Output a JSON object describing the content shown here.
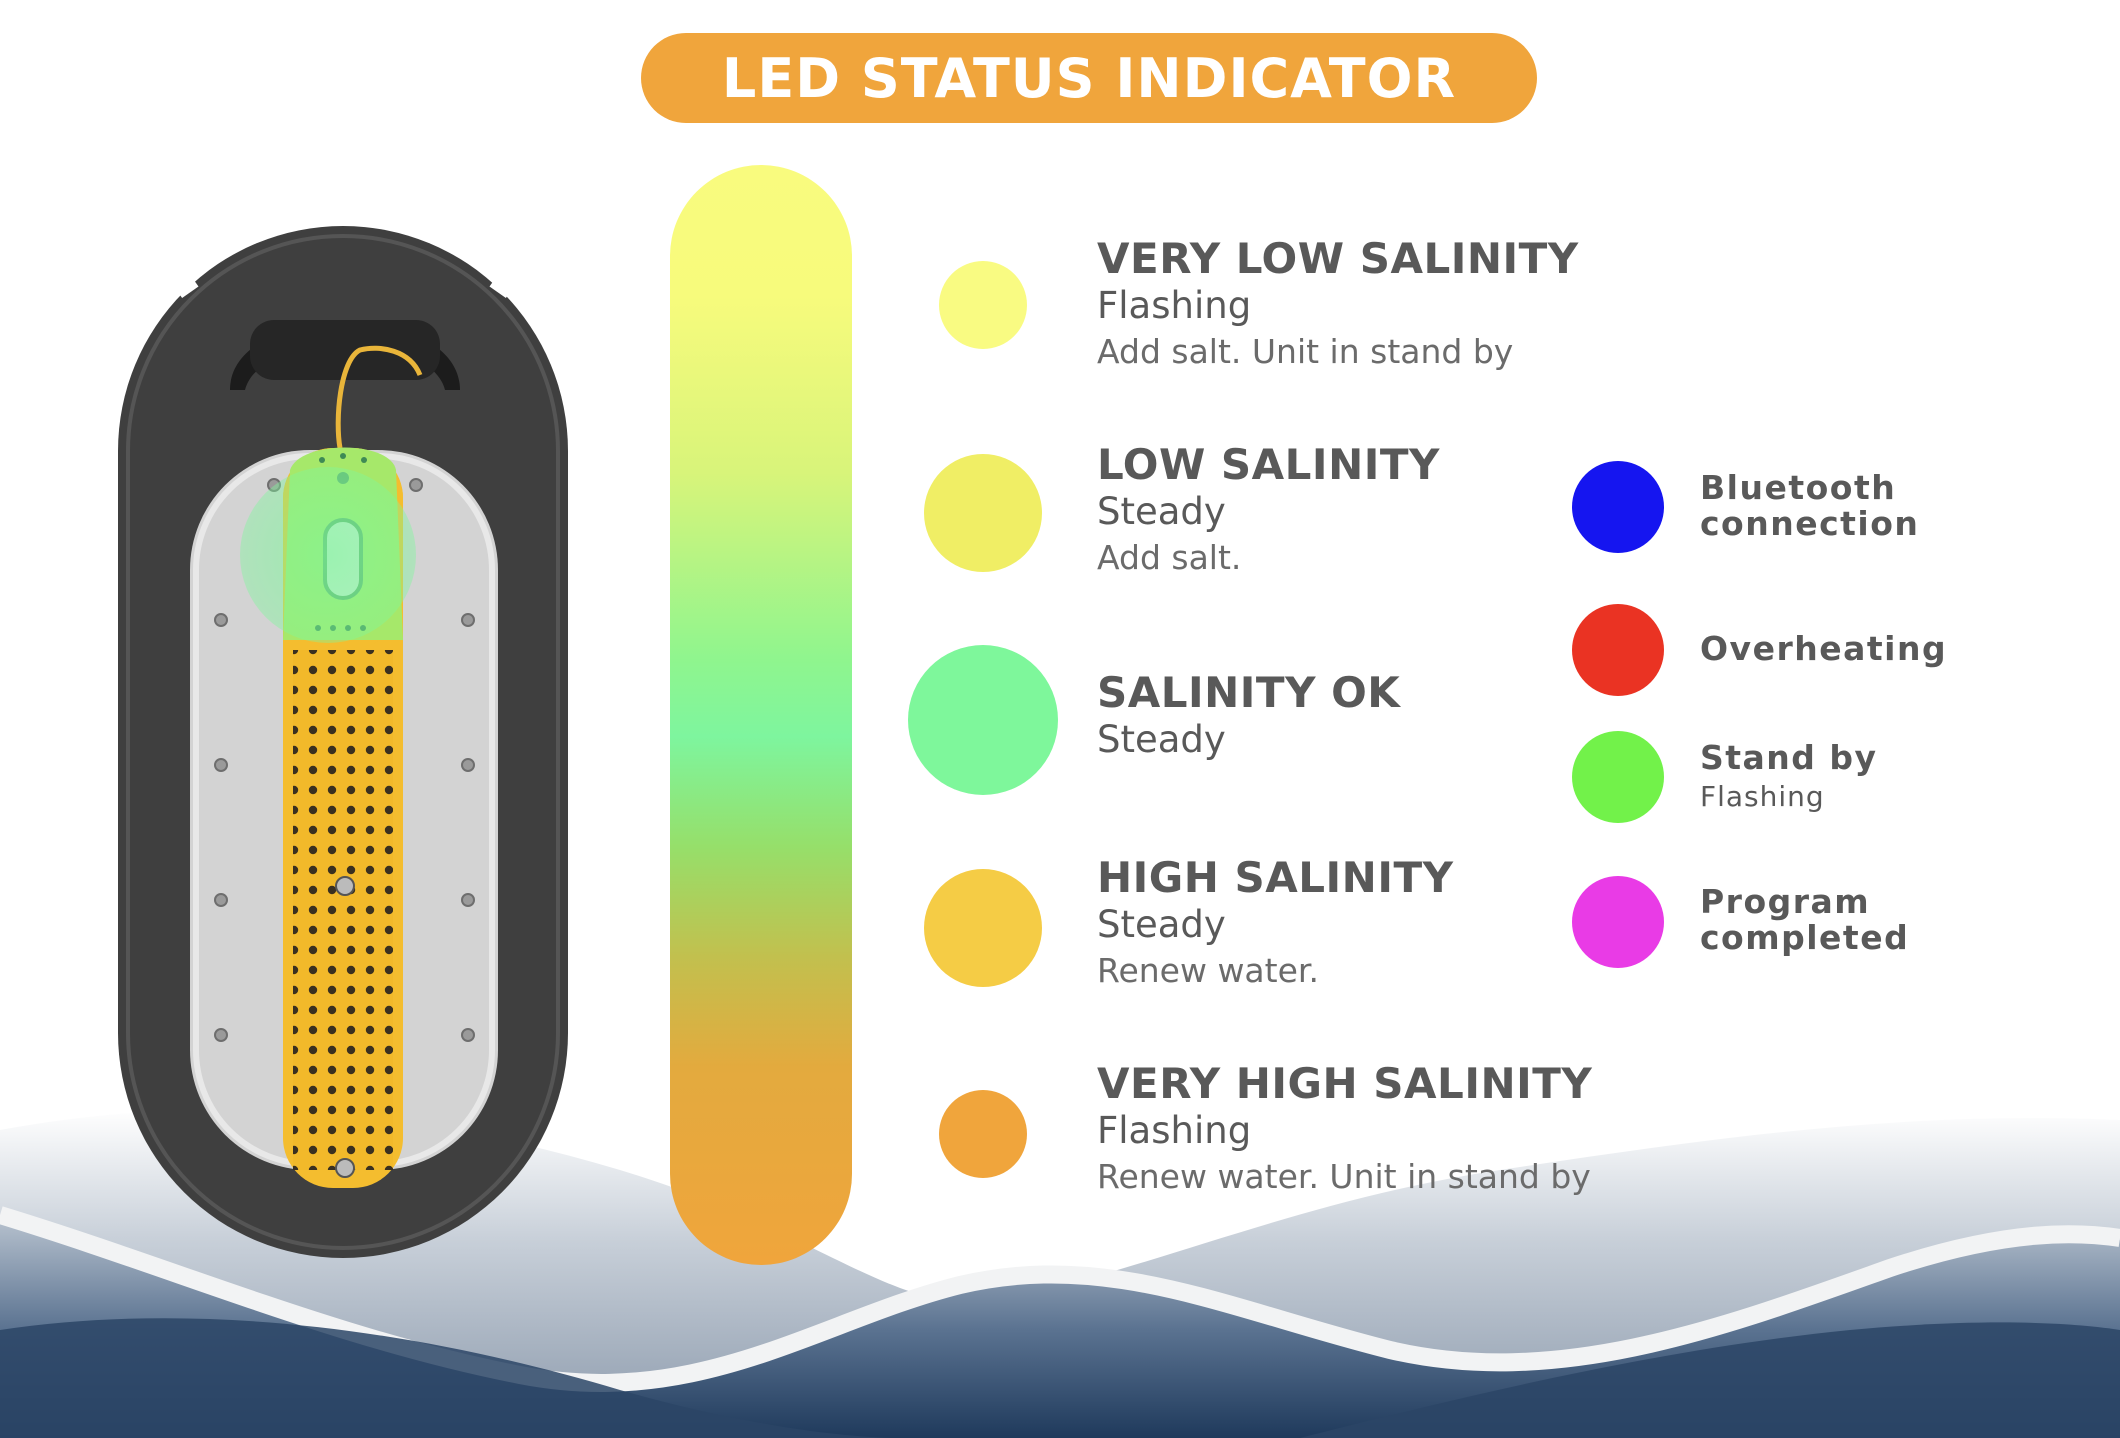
{
  "title": "LED STATUS INDICATOR",
  "colors": {
    "accent": "#f0a53c",
    "text": "#595959",
    "device_body": "#3f3f3f",
    "device_plate": "#d6d6d6",
    "salt_cell": "#f6c033",
    "wave_dark": "#1f3a5c"
  },
  "salinity_levels": [
    {
      "title": "VERY LOW SALINITY",
      "mode": "Flashing",
      "note": "Add salt. Unit in stand by",
      "color": "#f9fb82"
    },
    {
      "title": "LOW SALINITY",
      "mode": "Steady",
      "note": "Add salt.",
      "color": "#f0ee65"
    },
    {
      "title": "SALINITY OK",
      "mode": "Steady",
      "note": "",
      "color": "#7ef79b"
    },
    {
      "title": "HIGH SALINITY",
      "mode": "Steady",
      "note": "Renew water.",
      "color": "#f5cc45"
    },
    {
      "title": "VERY HIGH SALINITY",
      "mode": "Flashing",
      "note": "Renew water. Unit in stand by",
      "color": "#f0a53c"
    }
  ],
  "other_indicators": [
    {
      "line1": "Bluetooth",
      "line2": "connection",
      "sub": "",
      "color": "#1515f0"
    },
    {
      "line1": "Overheating",
      "line2": "",
      "sub": "",
      "color": "#ea3323"
    },
    {
      "line1": "Stand by",
      "line2": "",
      "sub": "Flashing",
      "color": "#72f24a"
    },
    {
      "line1": "Program",
      "line2": "completed",
      "sub": "",
      "color": "#e93be6"
    }
  ]
}
